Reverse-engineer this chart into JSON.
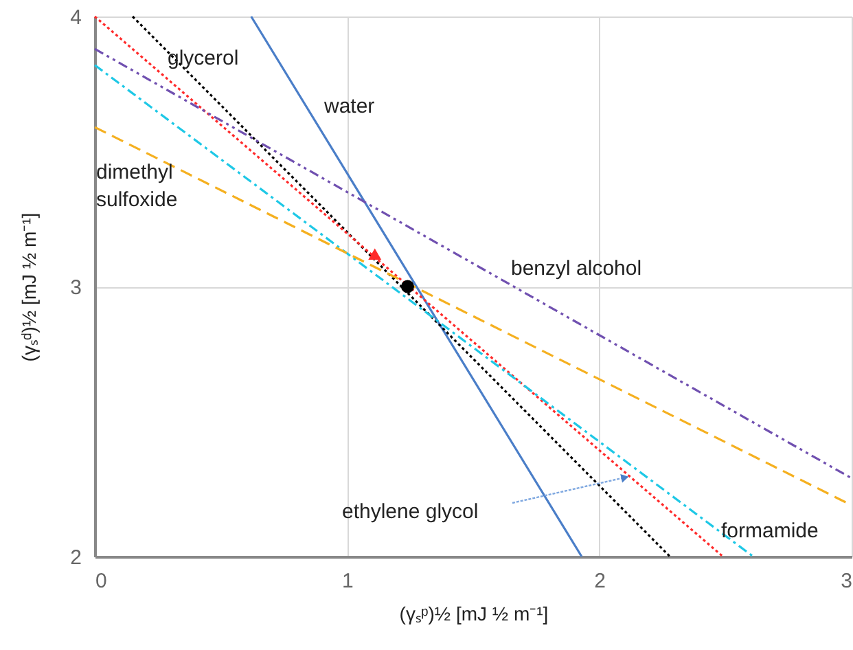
{
  "chart_data": {
    "type": "line",
    "xlabel": "(γₛᵖ)½ [mJ ½ m⁻¹]",
    "ylabel": "(γₛᵈ)½ [mJ ½ m⁻¹]",
    "xlim": [
      0,
      3
    ],
    "ylim": [
      2,
      4
    ],
    "xticks": [
      0,
      1,
      2,
      3
    ],
    "yticks": [
      2,
      3,
      4
    ],
    "grid": true,
    "series": [
      {
        "name": "water",
        "color": "#4a7ec8",
        "line_style": "solid",
        "x": [
          0.62,
          1.93
        ],
        "values": [
          4,
          2
        ]
      },
      {
        "name": "glycerol",
        "color": "#000000",
        "line_style": "dotted",
        "x": [
          0.15,
          2.28
        ],
        "values": [
          4,
          2
        ]
      },
      {
        "color": "#ff2a2a",
        "line_style": "dotted",
        "x": [
          0,
          2.49
        ],
        "values": [
          4,
          2
        ]
      },
      {
        "name": "formamide",
        "color": "#1ec8e6",
        "line_style": "dashdot",
        "x": [
          0,
          2.61
        ],
        "values": [
          3.82,
          2
        ]
      },
      {
        "name": "benzyl alcohol",
        "color": "#7050b0",
        "line_style": "dashdotdot",
        "x": [
          0,
          3
        ],
        "values": [
          3.88,
          2.29
        ]
      },
      {
        "name": "dimethyl sulfoxide",
        "color": "#f5b020",
        "line_style": "dashed",
        "x": [
          0,
          3
        ],
        "values": [
          3.59,
          2.19
        ]
      },
      {
        "type": "scatter",
        "marker": "triangle",
        "color": "#ff2a2a",
        "x": [
          1.11
        ],
        "values": [
          3.12
        ]
      },
      {
        "type": "scatter",
        "marker": "circle",
        "color": "#000000",
        "x": [
          1.24
        ],
        "values": [
          3.0
        ]
      }
    ],
    "annotations": [
      "ethylene glycol"
    ]
  }
}
